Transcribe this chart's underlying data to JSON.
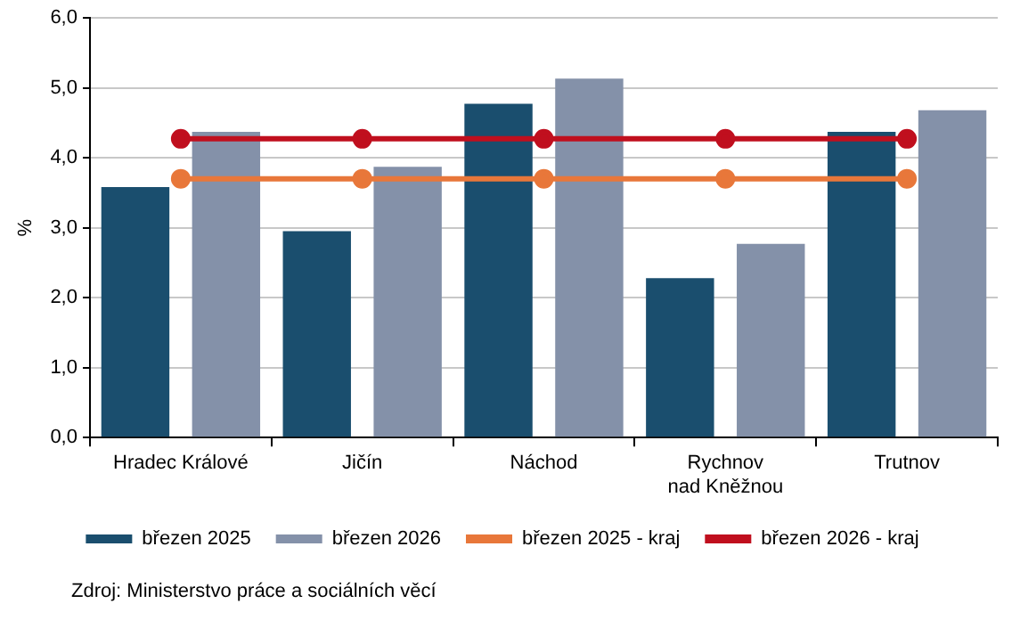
{
  "chart_data": {
    "type": "bar",
    "categories": [
      "Hradec Králové",
      "Jičín",
      "Náchod",
      "Rychnov nad Kněžnou",
      "Trutnov"
    ],
    "ylabel": "%",
    "series": [
      {
        "name": "březen 2025",
        "color": "#1a4e6e",
        "values": [
          3.58,
          2.95,
          4.77,
          2.28,
          4.37
        ]
      },
      {
        "name": "březen 2026",
        "color": "#8491a9",
        "values": [
          4.37,
          3.87,
          5.13,
          2.77,
          4.68
        ]
      },
      {
        "name": "březen 2025 - kraj",
        "type": "line",
        "color": "#e8773a",
        "values": [
          3.7,
          3.7,
          3.7,
          3.7,
          3.7
        ]
      },
      {
        "name": "březen 2026 - kraj",
        "type": "line",
        "color": "#c00f1e",
        "values": [
          4.27,
          4.27,
          4.27,
          4.27,
          4.27
        ]
      }
    ],
    "ylim": [
      0,
      6
    ],
    "yticks": [
      {
        "value": 0,
        "label": "0,0"
      },
      {
        "value": 1,
        "label": "1,0"
      },
      {
        "value": 2,
        "label": "2,0"
      },
      {
        "value": 3,
        "label": "3,0"
      },
      {
        "value": 4,
        "label": "4,0"
      },
      {
        "value": 5,
        "label": "5,0"
      },
      {
        "value": 6,
        "label": "6,0"
      }
    ],
    "grid": "y",
    "legend": "bottom",
    "marker": "circle",
    "line_style": "solid",
    "annotations": [
      "Zdroj: Ministerstvo práce a sociálních věcí"
    ]
  }
}
